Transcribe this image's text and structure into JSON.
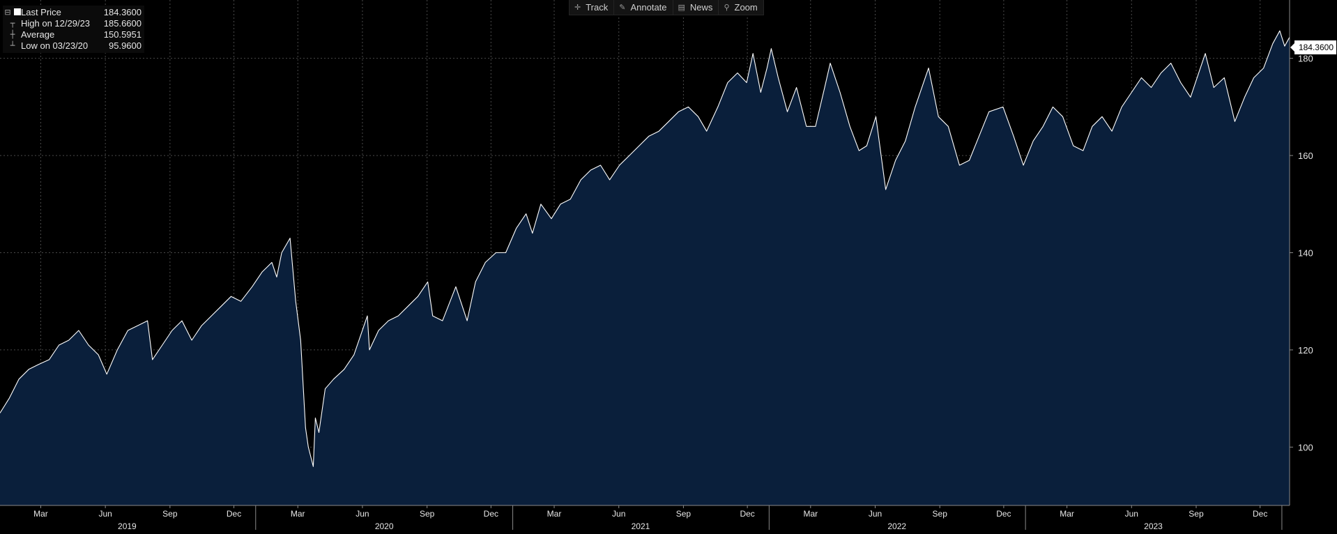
{
  "legend": {
    "rows": [
      {
        "label": "Last Price",
        "value": "184.3600"
      },
      {
        "label": "High on 12/29/23",
        "value": "185.6600"
      },
      {
        "label": "Average",
        "value": "150.5951"
      },
      {
        "label": "Low on 03/23/20",
        "value": "95.9600"
      }
    ]
  },
  "toolbar": {
    "track_label": "Track",
    "annotate_label": "Annotate",
    "news_label": "News",
    "zoom_label": "Zoom",
    "track_icon": "crosshair-icon",
    "annotate_icon": "pencil-icon",
    "news_icon": "newspaper-icon",
    "zoom_icon": "magnifier-icon"
  },
  "last_price_tag": "184.3600",
  "colors": {
    "background": "#000000",
    "area_fill": "#0a1f3b",
    "line": "#ffffff",
    "grid": "#4a4a4a",
    "text": "#e6e6e6"
  },
  "chart_data": {
    "type": "area",
    "title": "",
    "xlabel": "",
    "ylabel": "",
    "ylim": [
      88,
      192
    ],
    "y_ticks": [
      100,
      120,
      140,
      160,
      180
    ],
    "y_tick_labels": [
      "100",
      "120",
      "140",
      "160",
      "180"
    ],
    "y_axis_side": "right",
    "grid": true,
    "x_range": [
      "2019-01-02",
      "2024-01-12"
    ],
    "month_ticks": [
      {
        "date": "2019-03-01",
        "label": "Mar"
      },
      {
        "date": "2019-06-01",
        "label": "Jun"
      },
      {
        "date": "2019-09-01",
        "label": "Sep"
      },
      {
        "date": "2019-12-01",
        "label": "Dec"
      },
      {
        "date": "2020-03-01",
        "label": "Mar"
      },
      {
        "date": "2020-06-01",
        "label": "Jun"
      },
      {
        "date": "2020-09-01",
        "label": "Sep"
      },
      {
        "date": "2020-12-01",
        "label": "Dec"
      },
      {
        "date": "2021-03-01",
        "label": "Mar"
      },
      {
        "date": "2021-06-01",
        "label": "Jun"
      },
      {
        "date": "2021-09-01",
        "label": "Sep"
      },
      {
        "date": "2021-12-01",
        "label": "Dec"
      },
      {
        "date": "2022-03-01",
        "label": "Mar"
      },
      {
        "date": "2022-06-01",
        "label": "Jun"
      },
      {
        "date": "2022-09-01",
        "label": "Sep"
      },
      {
        "date": "2022-12-01",
        "label": "Dec"
      },
      {
        "date": "2023-03-01",
        "label": "Mar"
      },
      {
        "date": "2023-06-01",
        "label": "Jun"
      },
      {
        "date": "2023-09-01",
        "label": "Sep"
      },
      {
        "date": "2023-12-01",
        "label": "Dec"
      }
    ],
    "year_labels": [
      {
        "date": "2019-07-02",
        "label": "2019"
      },
      {
        "date": "2020-07-02",
        "label": "2020"
      },
      {
        "date": "2021-07-02",
        "label": "2021"
      },
      {
        "date": "2022-07-02",
        "label": "2022"
      },
      {
        "date": "2023-07-02",
        "label": "2023"
      }
    ],
    "series": [
      {
        "points": [
          [
            "2019-01-02",
            107
          ],
          [
            "2019-01-15",
            110
          ],
          [
            "2019-01-29",
            114
          ],
          [
            "2019-02-12",
            116
          ],
          [
            "2019-02-26",
            117
          ],
          [
            "2019-03-13",
            118
          ],
          [
            "2019-03-27",
            121
          ],
          [
            "2019-04-10",
            122
          ],
          [
            "2019-04-24",
            124
          ],
          [
            "2019-05-08",
            121
          ],
          [
            "2019-05-22",
            119
          ],
          [
            "2019-06-03",
            115
          ],
          [
            "2019-06-18",
            120
          ],
          [
            "2019-07-03",
            124
          ],
          [
            "2019-07-17",
            125
          ],
          [
            "2019-07-31",
            126
          ],
          [
            "2019-08-07",
            118
          ],
          [
            "2019-08-21",
            121
          ],
          [
            "2019-09-04",
            124
          ],
          [
            "2019-09-18",
            126
          ],
          [
            "2019-10-02",
            122
          ],
          [
            "2019-10-16",
            125
          ],
          [
            "2019-10-30",
            127
          ],
          [
            "2019-11-13",
            129
          ],
          [
            "2019-11-27",
            131
          ],
          [
            "2019-12-11",
            130
          ],
          [
            "2019-12-27",
            133
          ],
          [
            "2020-01-10",
            136
          ],
          [
            "2020-01-24",
            138
          ],
          [
            "2020-01-31",
            135
          ],
          [
            "2020-02-07",
            140
          ],
          [
            "2020-02-19",
            143
          ],
          [
            "2020-02-27",
            130
          ],
          [
            "2020-03-05",
            122
          ],
          [
            "2020-03-12",
            104
          ],
          [
            "2020-03-16",
            100
          ],
          [
            "2020-03-23",
            96
          ],
          [
            "2020-03-26",
            106
          ],
          [
            "2020-03-31",
            103
          ],
          [
            "2020-04-09",
            112
          ],
          [
            "2020-04-21",
            114
          ],
          [
            "2020-05-06",
            116
          ],
          [
            "2020-05-20",
            119
          ],
          [
            "2020-06-08",
            127
          ],
          [
            "2020-06-11",
            120
          ],
          [
            "2020-06-24",
            124
          ],
          [
            "2020-07-08",
            126
          ],
          [
            "2020-07-22",
            127
          ],
          [
            "2020-08-05",
            129
          ],
          [
            "2020-08-19",
            131
          ],
          [
            "2020-09-02",
            134
          ],
          [
            "2020-09-09",
            127
          ],
          [
            "2020-09-23",
            126
          ],
          [
            "2020-10-12",
            133
          ],
          [
            "2020-10-28",
            126
          ],
          [
            "2020-11-09",
            134
          ],
          [
            "2020-11-23",
            138
          ],
          [
            "2020-12-08",
            140
          ],
          [
            "2020-12-22",
            140
          ],
          [
            "2021-01-06",
            145
          ],
          [
            "2021-01-20",
            148
          ],
          [
            "2021-01-29",
            144
          ],
          [
            "2021-02-10",
            150
          ],
          [
            "2021-02-25",
            147
          ],
          [
            "2021-03-10",
            150
          ],
          [
            "2021-03-24",
            151
          ],
          [
            "2021-04-08",
            155
          ],
          [
            "2021-04-22",
            157
          ],
          [
            "2021-05-06",
            158
          ],
          [
            "2021-05-19",
            155
          ],
          [
            "2021-06-02",
            158
          ],
          [
            "2021-06-16",
            160
          ],
          [
            "2021-06-30",
            162
          ],
          [
            "2021-07-14",
            164
          ],
          [
            "2021-07-28",
            165
          ],
          [
            "2021-08-11",
            167
          ],
          [
            "2021-08-25",
            169
          ],
          [
            "2021-09-08",
            170
          ],
          [
            "2021-09-22",
            168
          ],
          [
            "2021-10-04",
            165
          ],
          [
            "2021-10-20",
            170
          ],
          [
            "2021-11-03",
            175
          ],
          [
            "2021-11-17",
            177
          ],
          [
            "2021-11-30",
            175
          ],
          [
            "2021-12-09",
            181
          ],
          [
            "2021-12-20",
            173
          ],
          [
            "2021-12-29",
            178
          ],
          [
            "2022-01-04",
            182
          ],
          [
            "2022-01-14",
            176
          ],
          [
            "2022-01-27",
            169
          ],
          [
            "2022-02-09",
            174
          ],
          [
            "2022-02-23",
            166
          ],
          [
            "2022-03-08",
            166
          ],
          [
            "2022-03-21",
            174
          ],
          [
            "2022-03-29",
            179
          ],
          [
            "2022-04-12",
            173
          ],
          [
            "2022-04-26",
            166
          ],
          [
            "2022-05-09",
            161
          ],
          [
            "2022-05-20",
            162
          ],
          [
            "2022-06-02",
            168
          ],
          [
            "2022-06-16",
            153
          ],
          [
            "2022-06-30",
            159
          ],
          [
            "2022-07-14",
            163
          ],
          [
            "2022-07-28",
            170
          ],
          [
            "2022-08-16",
            178
          ],
          [
            "2022-08-30",
            168
          ],
          [
            "2022-09-13",
            166
          ],
          [
            "2022-09-29",
            158
          ],
          [
            "2022-10-13",
            159
          ],
          [
            "2022-10-27",
            164
          ],
          [
            "2022-11-10",
            169
          ],
          [
            "2022-11-30",
            170
          ],
          [
            "2022-12-15",
            164
          ],
          [
            "2022-12-29",
            158
          ],
          [
            "2023-01-12",
            163
          ],
          [
            "2023-01-26",
            166
          ],
          [
            "2023-02-09",
            170
          ],
          [
            "2023-02-23",
            168
          ],
          [
            "2023-03-10",
            162
          ],
          [
            "2023-03-24",
            161
          ],
          [
            "2023-04-06",
            166
          ],
          [
            "2023-04-20",
            168
          ],
          [
            "2023-05-04",
            165
          ],
          [
            "2023-05-18",
            170
          ],
          [
            "2023-06-01",
            173
          ],
          [
            "2023-06-15",
            176
          ],
          [
            "2023-06-29",
            174
          ],
          [
            "2023-07-13",
            177
          ],
          [
            "2023-07-27",
            179
          ],
          [
            "2023-08-10",
            175
          ],
          [
            "2023-08-24",
            172
          ],
          [
            "2023-09-07",
            178
          ],
          [
            "2023-09-14",
            181
          ],
          [
            "2023-09-26",
            174
          ],
          [
            "2023-10-11",
            176
          ],
          [
            "2023-10-26",
            167
          ],
          [
            "2023-11-09",
            172
          ],
          [
            "2023-11-22",
            176
          ],
          [
            "2023-12-06",
            178
          ],
          [
            "2023-12-19",
            183
          ],
          [
            "2023-12-29",
            185.66
          ],
          [
            "2024-01-05",
            182.5
          ],
          [
            "2024-01-12",
            184.36
          ]
        ]
      }
    ]
  }
}
